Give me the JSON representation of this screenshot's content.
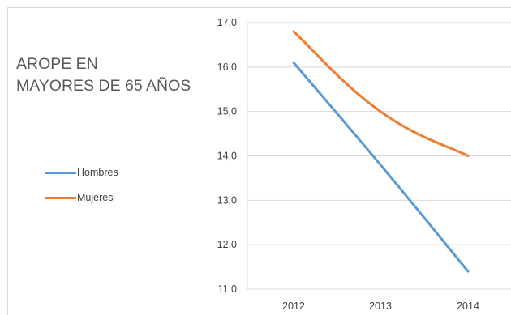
{
  "chart_data": {
    "type": "line",
    "title_lines": [
      "AROPE EN",
      "MAYORES DE 65 AÑOS"
    ],
    "categories": [
      "2012",
      "2013",
      "2014"
    ],
    "series": [
      {
        "name": "Hombres",
        "values": [
          16.1,
          13.8,
          11.4
        ],
        "color": "#5b9bd5"
      },
      {
        "name": "Mujeres",
        "values": [
          16.8,
          15.0,
          14.0
        ],
        "color": "#ed7d31"
      }
    ],
    "y_ticks": [
      "17,0",
      "16,0",
      "15,0",
      "14,0",
      "13,0",
      "12,0",
      "11,0"
    ],
    "ylim": [
      11,
      17
    ],
    "grid": true,
    "legend_position": "left"
  }
}
